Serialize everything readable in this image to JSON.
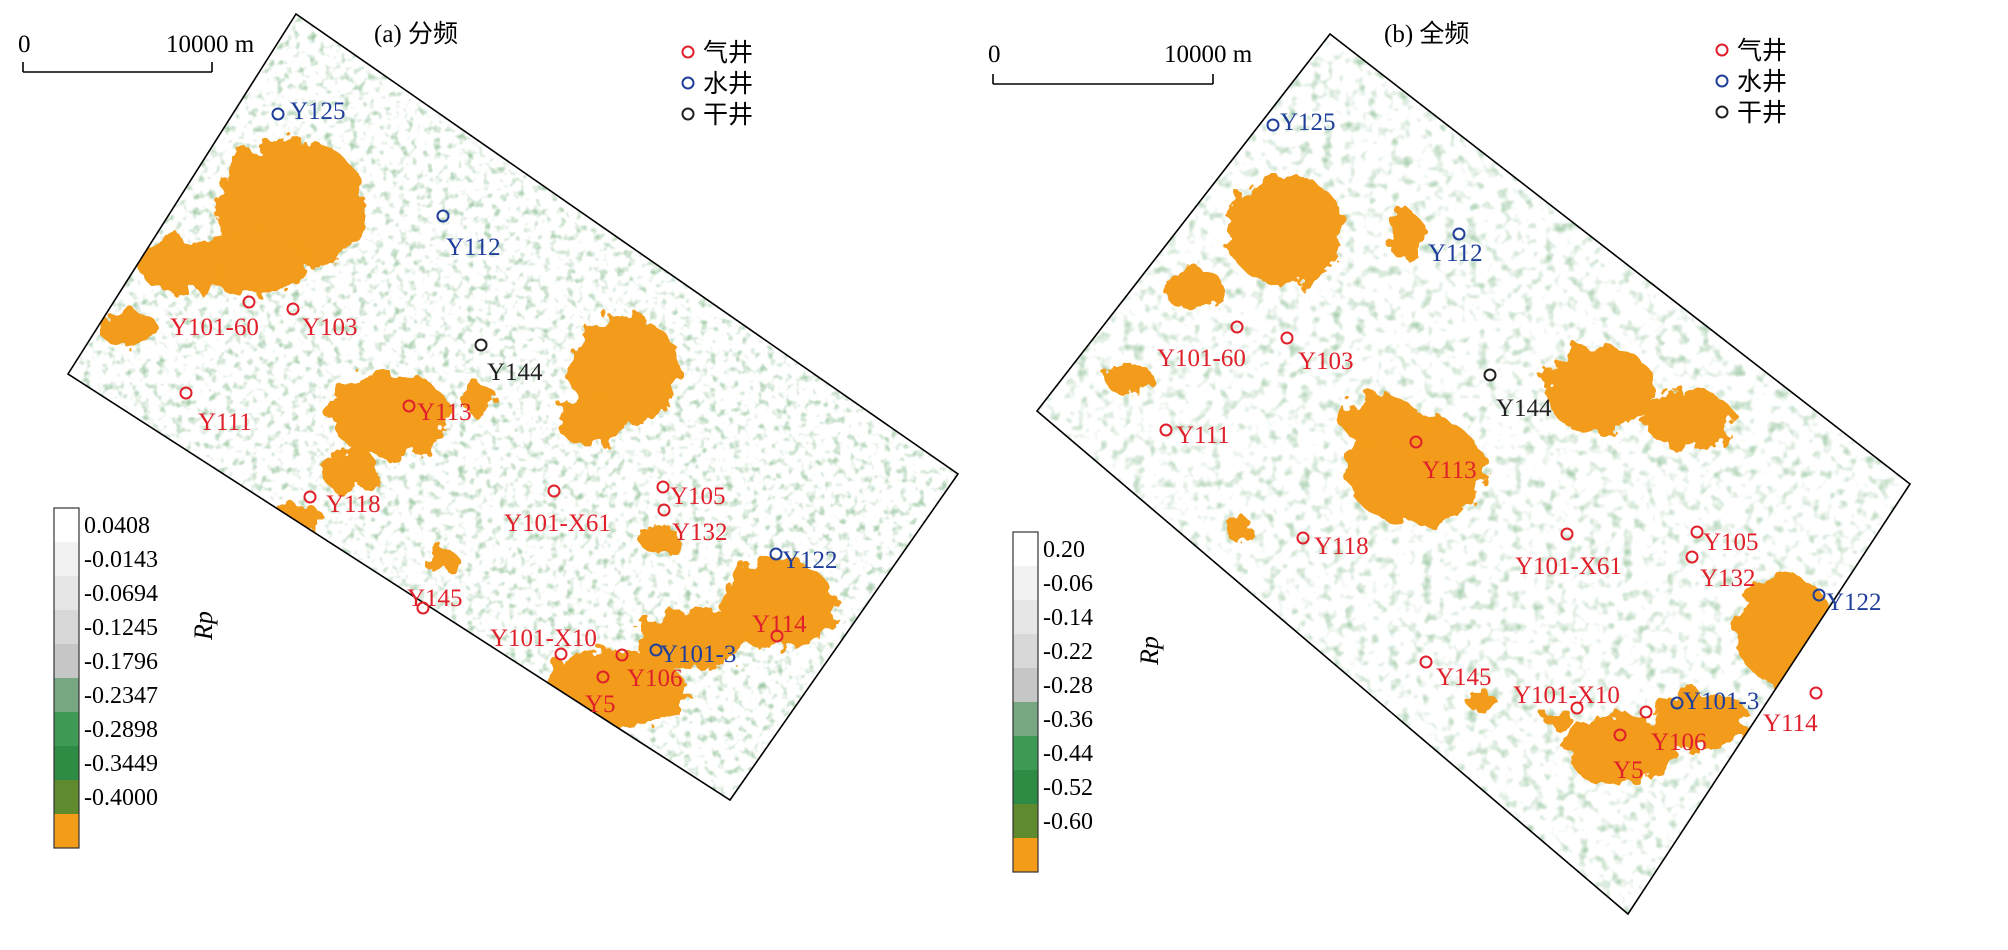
{
  "colors": {
    "gas": "#e0202a",
    "water": "#1f3f9a",
    "dry": "#222222",
    "orange": "#f39c1a",
    "greens": [
      "#5f8a2e",
      "#2e8b43",
      "#3f9a55",
      "#78a882"
    ],
    "greys": [
      "#c6c6c6",
      "#d8d8d8",
      "#e6e6e6",
      "#f2f2f2",
      "#ffffff"
    ]
  },
  "legend": {
    "gas": "气井",
    "water": "水井",
    "dry": "干井"
  },
  "colorbar_label": "Rp",
  "panels": [
    {
      "id": "a",
      "title": "(a) 分频",
      "scale": {
        "zero": "0",
        "length": "10000 m"
      },
      "colorbar_ticks": [
        "0.0408",
        "-0.0143",
        "-0.0694",
        "-0.1245",
        "-0.1796",
        "-0.2347",
        "-0.2898",
        "-0.3449",
        "-0.4000"
      ],
      "wells": [
        {
          "name": "Y125",
          "type": "water"
        },
        {
          "name": "Y112",
          "type": "water"
        },
        {
          "name": "Y101-60",
          "type": "gas"
        },
        {
          "name": "Y103",
          "type": "gas"
        },
        {
          "name": "Y144",
          "type": "dry"
        },
        {
          "name": "Y111",
          "type": "gas"
        },
        {
          "name": "Y113",
          "type": "gas"
        },
        {
          "name": "Y118",
          "type": "gas"
        },
        {
          "name": "Y101-X61",
          "type": "gas"
        },
        {
          "name": "Y105",
          "type": "gas"
        },
        {
          "name": "Y132",
          "type": "gas"
        },
        {
          "name": "Y122",
          "type": "water"
        },
        {
          "name": "Y145",
          "type": "gas"
        },
        {
          "name": "Y101-X10",
          "type": "gas"
        },
        {
          "name": "Y101-3",
          "type": "water"
        },
        {
          "name": "Y114",
          "type": "gas"
        },
        {
          "name": "Y106",
          "type": "gas"
        },
        {
          "name": "Y5",
          "type": "gas"
        }
      ]
    },
    {
      "id": "b",
      "title": "(b) 全频",
      "scale": {
        "zero": "0",
        "length": "10000 m"
      },
      "colorbar_ticks": [
        "0.20",
        "-0.06",
        "-0.14",
        "-0.22",
        "-0.28",
        "-0.36",
        "-0.44",
        "-0.52",
        "-0.60"
      ],
      "wells": [
        {
          "name": "Y125",
          "type": "water"
        },
        {
          "name": "Y112",
          "type": "water"
        },
        {
          "name": "Y101-60",
          "type": "gas"
        },
        {
          "name": "Y103",
          "type": "gas"
        },
        {
          "name": "Y144",
          "type": "dry"
        },
        {
          "name": "Y111",
          "type": "gas"
        },
        {
          "name": "Y113",
          "type": "gas"
        },
        {
          "name": "Y118",
          "type": "gas"
        },
        {
          "name": "Y101-X61",
          "type": "gas"
        },
        {
          "name": "Y105",
          "type": "gas"
        },
        {
          "name": "Y132",
          "type": "gas"
        },
        {
          "name": "Y122",
          "type": "water"
        },
        {
          "name": "Y145",
          "type": "gas"
        },
        {
          "name": "Y101-X10",
          "type": "gas"
        },
        {
          "name": "Y101-3",
          "type": "water"
        },
        {
          "name": "Y114",
          "type": "gas"
        },
        {
          "name": "Y106",
          "type": "gas"
        },
        {
          "name": "Y5",
          "type": "gas"
        }
      ]
    }
  ]
}
